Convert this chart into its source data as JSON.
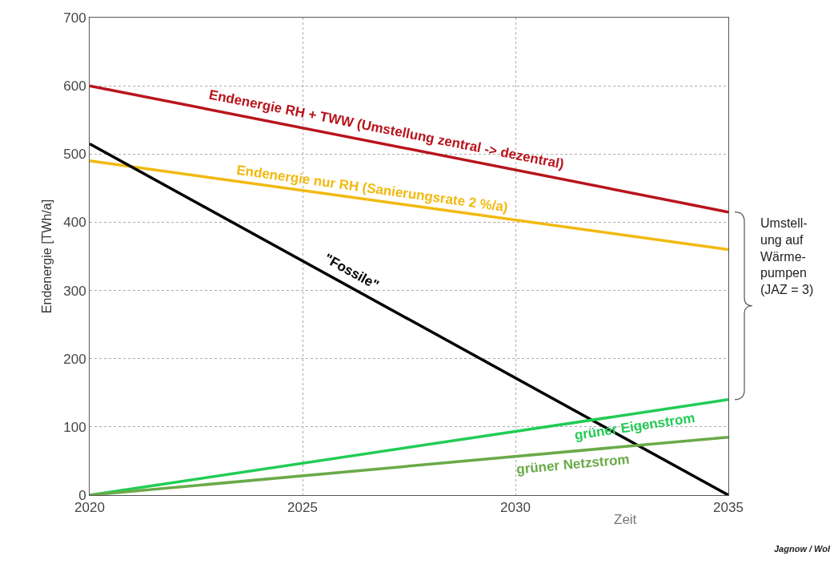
{
  "chart_data": {
    "type": "line",
    "xlabel": "Zeit",
    "ylabel": "Endenergie [TWh/a]",
    "x": [
      2020,
      2035
    ],
    "series": [
      {
        "name": "Endenergie RH + TWW (Umstellung zentral -> dezentral)",
        "color": "#b8141c",
        "values": [
          600,
          415
        ]
      },
      {
        "name": "Endenergie nur RH (Sanierungsrate 2 %/a)",
        "color": "#f2b90f",
        "values": [
          490,
          360
        ]
      },
      {
        "name": "\"Fossile\"",
        "color": "#000000",
        "values": [
          515,
          0
        ]
      },
      {
        "name": "grüner Eigenstrom",
        "color": "#22cc55",
        "values": [
          0,
          140
        ]
      },
      {
        "name": "grüner Netzstrom",
        "color": "#6aaa48",
        "values": [
          0,
          85
        ]
      }
    ],
    "xlim": [
      2020,
      2035
    ],
    "xticks": [
      2020,
      2025,
      2030,
      2035
    ],
    "ylim": [
      0,
      700
    ],
    "yticks": [
      0,
      100,
      200,
      300,
      400,
      500,
      600,
      700
    ],
    "grid": true,
    "marker": "none",
    "line_style": "solid",
    "legend": false,
    "annotations": [
      "Umstell-\nung auf\nWärme-\npumpen\n(JAZ = 3)",
      "Jagnow / Wol"
    ]
  }
}
